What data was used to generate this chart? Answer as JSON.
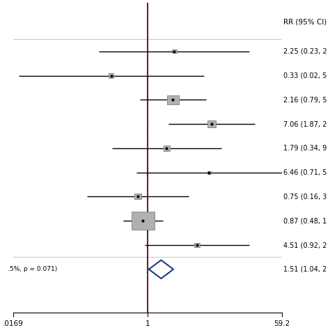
{
  "studies": [
    {
      "rr": 2.25,
      "ci_lo": 0.23,
      "ci_hi": 22.0,
      "label": "2.25 (0.23, 2",
      "weight": 1.0
    },
    {
      "rr": 0.33,
      "ci_lo": 0.02,
      "ci_hi": 5.5,
      "label": "0.33 (0.02, 5",
      "weight": 1.2
    },
    {
      "rr": 2.16,
      "ci_lo": 0.79,
      "ci_hi": 5.9,
      "label": "2.16 (0.79, 5",
      "weight": 2.5
    },
    {
      "rr": 7.06,
      "ci_lo": 1.87,
      "ci_hi": 26.0,
      "label": "7.06 (1.87, 2",
      "weight": 1.8
    },
    {
      "rr": 1.79,
      "ci_lo": 0.34,
      "ci_hi": 9.5,
      "label": "1.79 (0.34, 9",
      "weight": 1.5
    },
    {
      "rr": 6.46,
      "ci_lo": 0.71,
      "ci_hi": 59.2,
      "label": "6.46 (0.71, 5",
      "weight": 0.8
    },
    {
      "rr": 0.75,
      "ci_lo": 0.16,
      "ci_hi": 3.5,
      "label": "0.75 (0.16, 3",
      "weight": 1.5
    },
    {
      "rr": 0.87,
      "ci_lo": 0.48,
      "ci_hi": 1.6,
      "label": "0.87 (0.48, 1",
      "weight": 5.0
    },
    {
      "rr": 4.51,
      "ci_lo": 0.92,
      "ci_hi": 22.0,
      "label": "4.51 (0.92, 2",
      "weight": 1.2
    }
  ],
  "pooled": {
    "rr": 1.51,
    "ci_lo": 1.04,
    "ci_hi": 2.19,
    "label": "1.51 (1.04, 2",
    "heterogeneity": ".5%, p = 0.071)"
  },
  "xmin": 0.0169,
  "xmax": 59.2,
  "xtick_labels": [
    ".0169",
    "1",
    "59.2"
  ],
  "header_rr": "RR (95% CI)",
  "box_color": "#b0b0b0",
  "box_edge_color": "#808080",
  "diamond_color": "#1a3a8a",
  "line_color": "#000000",
  "dashed_color": "#aa3333",
  "bg_color": "#ffffff",
  "separator_color": "#cccccc"
}
